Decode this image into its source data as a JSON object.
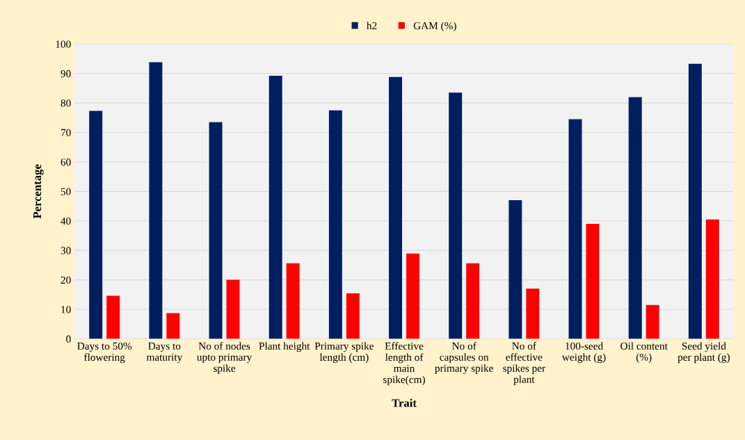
{
  "chart_data": {
    "type": "bar",
    "xlabel": "Trait",
    "ylabel": "Percentage",
    "categories": [
      "Days to 50%\nflowering",
      "Days to\nmaturity",
      "No of nodes\nupto primary\nspike",
      "Plant height",
      "Primary spike\nlength (cm)",
      "Effective\nlength of\nmain\nspike(cm)",
      "No of\ncapsules on\nprimary spike",
      "No of\neffective\nspikes per\nplant",
      "100-seed\nweight (g)",
      "Oil content\n(%)",
      "Seed yield\nper plant (g)"
    ],
    "series": [
      {
        "name": "h2",
        "color": "#001f5f",
        "values": [
          77.3,
          93.8,
          73.5,
          89.2,
          77.5,
          88.8,
          83.5,
          47,
          74.5,
          82,
          93.3
        ]
      },
      {
        "name": "GAM (%)",
        "color": "#ff0000",
        "values": [
          14.6,
          8.7,
          20,
          25.6,
          15.4,
          28.9,
          25.6,
          17,
          39,
          11.5,
          40.5
        ]
      }
    ],
    "ylim": [
      0,
      100
    ],
    "yticks": [
      0,
      10,
      20,
      30,
      40,
      50,
      60,
      70,
      80,
      90,
      100
    ],
    "grid": "y",
    "legend": "top"
  }
}
